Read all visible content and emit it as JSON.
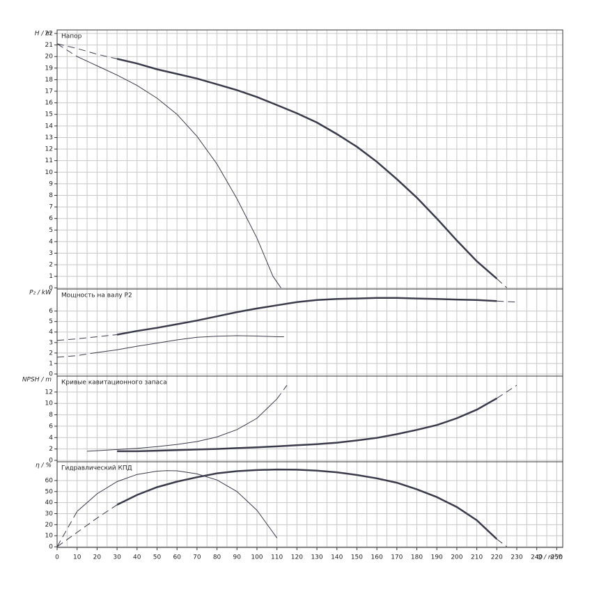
{
  "chart_data": [
    {
      "type": "line",
      "title": "Напор",
      "ylabel": "H / m",
      "xlim": [
        0,
        253
      ],
      "ylim": [
        -0.1,
        22.3
      ],
      "yticks": [
        0,
        1,
        2,
        3,
        4,
        5,
        6,
        7,
        8,
        9,
        10,
        11,
        12,
        13,
        14,
        15,
        16,
        17,
        18,
        19,
        20,
        21,
        22
      ],
      "grid": true,
      "series": [
        {
          "color": "#3a3a4a",
          "width": 1,
          "dashed": true,
          "x": [
            0,
            10,
            20,
            30
          ],
          "values": [
            21.1,
            20.7,
            20.2,
            19.8
          ]
        },
        {
          "color": "#3a3a4a",
          "width": 2.5,
          "dashed": false,
          "x": [
            30,
            40,
            50,
            60,
            70,
            80,
            90,
            100,
            110,
            120,
            130,
            140,
            150,
            160,
            170,
            180,
            190,
            200,
            210,
            220
          ],
          "values": [
            19.8,
            19.4,
            18.9,
            18.5,
            18.1,
            17.6,
            17.1,
            16.5,
            15.8,
            15.1,
            14.3,
            13.3,
            12.2,
            10.9,
            9.4,
            7.8,
            6.0,
            4.1,
            2.3,
            0.8
          ]
        },
        {
          "color": "#3a3a4a",
          "width": 1,
          "dashed": true,
          "x": [
            220,
            225
          ],
          "values": [
            0.8,
            0
          ]
        },
        {
          "color": "#3a3a4a",
          "width": 1,
          "dashed": true,
          "x": [
            0,
            10
          ],
          "values": [
            21.1,
            20.0
          ]
        },
        {
          "color": "#3a3a4a",
          "width": 1,
          "dashed": false,
          "x": [
            10,
            20,
            30,
            40,
            50,
            60,
            70,
            80,
            90,
            100,
            108,
            112
          ],
          "values": [
            20.0,
            19.2,
            18.4,
            17.5,
            16.4,
            15.0,
            13.1,
            10.7,
            7.7,
            4.3,
            1.0,
            0
          ]
        }
      ]
    },
    {
      "type": "line",
      "title": "Мощность на валу P2",
      "ylabel": "P₂ / kW",
      "xlim": [
        0,
        253
      ],
      "ylim": [
        -0.2,
        8.1
      ],
      "yticks": [
        0,
        1,
        2,
        3,
        4,
        5,
        6
      ],
      "grid": true,
      "series": [
        {
          "color": "#3a3a4a",
          "width": 1,
          "dashed": true,
          "x": [
            0,
            10,
            20,
            30
          ],
          "values": [
            3.2,
            3.35,
            3.55,
            3.75
          ]
        },
        {
          "color": "#3a3a4a",
          "width": 2.5,
          "dashed": false,
          "x": [
            30,
            40,
            50,
            60,
            70,
            80,
            90,
            100,
            110,
            120,
            130,
            140,
            150,
            160,
            170,
            180,
            190,
            200,
            210,
            220
          ],
          "values": [
            3.75,
            4.1,
            4.4,
            4.75,
            5.1,
            5.5,
            5.9,
            6.25,
            6.55,
            6.85,
            7.05,
            7.15,
            7.2,
            7.25,
            7.25,
            7.2,
            7.15,
            7.1,
            7.05,
            6.95
          ]
        },
        {
          "color": "#3a3a4a",
          "width": 1,
          "dashed": true,
          "x": [
            220,
            230
          ],
          "values": [
            6.95,
            6.85
          ]
        },
        {
          "color": "#3a3a4a",
          "width": 1,
          "dashed": true,
          "x": [
            0,
            10,
            20
          ],
          "values": [
            1.6,
            1.75,
            2.05
          ]
        },
        {
          "color": "#3a3a4a",
          "width": 1,
          "dashed": false,
          "x": [
            20,
            30,
            40,
            50,
            60,
            70,
            80,
            90,
            100,
            110
          ],
          "values": [
            2.05,
            2.3,
            2.65,
            2.95,
            3.25,
            3.5,
            3.6,
            3.65,
            3.62,
            3.55
          ]
        },
        {
          "color": "#3a3a4a",
          "width": 1,
          "dashed": true,
          "x": [
            110,
            115
          ],
          "values": [
            3.55,
            3.55
          ]
        }
      ]
    },
    {
      "type": "line",
      "title": "Кривые кавитационного запаса",
      "ylabel": "NPSH / m",
      "xlim": [
        0,
        253
      ],
      "ylim": [
        -0.25,
        14.8
      ],
      "yticks": [
        0,
        2,
        4,
        6,
        8,
        10,
        12
      ],
      "grid": true,
      "series": [
        {
          "color": "#3a3a4a",
          "width": 2.5,
          "dashed": false,
          "x": [
            30,
            40,
            50,
            60,
            70,
            80,
            90,
            100,
            110,
            120,
            130,
            140,
            150,
            160,
            170,
            180,
            190,
            200,
            210,
            220
          ],
          "values": [
            1.6,
            1.6,
            1.7,
            1.8,
            1.9,
            2.0,
            2.15,
            2.3,
            2.45,
            2.65,
            2.85,
            3.1,
            3.5,
            3.95,
            4.6,
            5.35,
            6.2,
            7.4,
            8.9,
            10.9
          ]
        },
        {
          "color": "#3a3a4a",
          "width": 1,
          "dashed": true,
          "x": [
            220,
            230
          ],
          "values": [
            10.9,
            13.2
          ]
        },
        {
          "color": "#3a3a4a",
          "width": 1,
          "dashed": false,
          "x": [
            15,
            20,
            30,
            40,
            50,
            60,
            70,
            80,
            90,
            100,
            110
          ],
          "values": [
            1.6,
            1.7,
            1.9,
            2.1,
            2.4,
            2.8,
            3.3,
            4.1,
            5.4,
            7.4,
            10.8
          ]
        },
        {
          "color": "#3a3a4a",
          "width": 1,
          "dashed": true,
          "x": [
            110,
            115
          ],
          "values": [
            10.8,
            13.2
          ]
        }
      ]
    },
    {
      "type": "line",
      "title": "Гидравлический КПД",
      "ylabel": "η / %",
      "xlabel": "Q / m³/h",
      "xlim": [
        0,
        253
      ],
      "ylim": [
        -0.6,
        77
      ],
      "xticks": [
        0,
        10,
        20,
        30,
        40,
        50,
        60,
        70,
        80,
        90,
        100,
        110,
        120,
        130,
        140,
        150,
        160,
        170,
        180,
        190,
        200,
        210,
        220,
        230,
        240,
        250
      ],
      "yticks": [
        0,
        10,
        20,
        30,
        40,
        50,
        60
      ],
      "grid": true,
      "series": [
        {
          "color": "#3a3a4a",
          "width": 1,
          "dashed": true,
          "x": [
            0,
            10,
            20,
            30
          ],
          "values": [
            0,
            13,
            26,
            38
          ]
        },
        {
          "color": "#3a3a4a",
          "width": 2.5,
          "dashed": false,
          "x": [
            30,
            40,
            50,
            60,
            70,
            80,
            90,
            100,
            110,
            120,
            130,
            140,
            150,
            160,
            170,
            180,
            190,
            200,
            210,
            220
          ],
          "values": [
            38,
            47,
            54,
            59,
            63,
            66.5,
            68.5,
            69.5,
            70,
            69.8,
            69,
            67.5,
            65,
            62,
            58,
            52,
            45,
            36,
            24,
            7
          ]
        },
        {
          "color": "#3a3a4a",
          "width": 1,
          "dashed": true,
          "x": [
            220,
            225
          ],
          "values": [
            7,
            0
          ]
        },
        {
          "color": "#3a3a4a",
          "width": 1,
          "dashed": true,
          "x": [
            0,
            10
          ],
          "values": [
            0,
            32
          ]
        },
        {
          "color": "#3a3a4a",
          "width": 1,
          "dashed": false,
          "x": [
            10,
            20,
            30,
            40,
            50,
            55,
            60,
            70,
            80,
            90,
            100,
            110
          ],
          "values": [
            32,
            48,
            59,
            65.5,
            68.5,
            69,
            68.8,
            66,
            60.5,
            50,
            33,
            8
          ]
        }
      ]
    }
  ]
}
